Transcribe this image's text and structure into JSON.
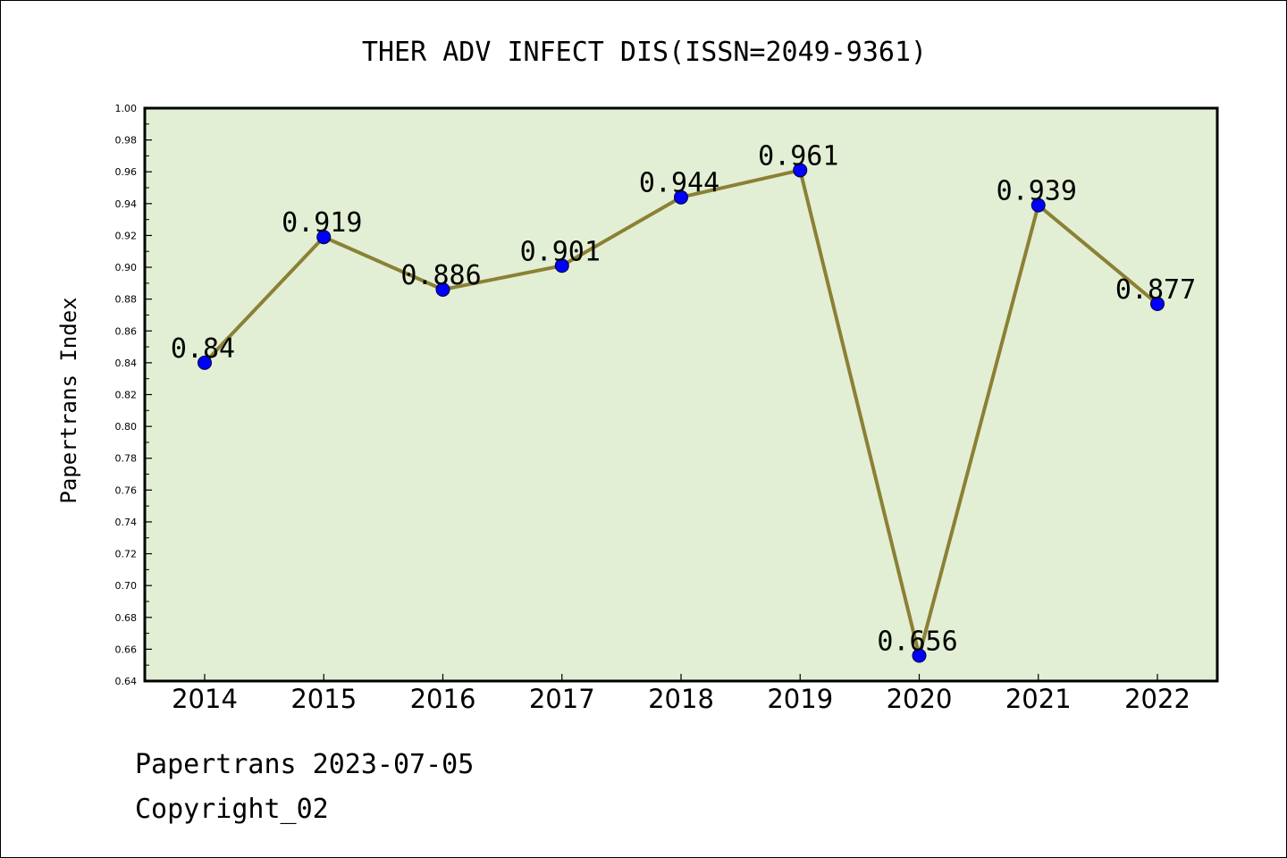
{
  "chart_data": {
    "type": "line",
    "title": "THER ADV INFECT DIS(ISSN=2049-9361)",
    "ylabel": "Papertrans Index",
    "xlabel": "",
    "categories": [
      "2014",
      "2015",
      "2016",
      "2017",
      "2018",
      "2019",
      "2020",
      "2021",
      "2022"
    ],
    "values": [
      0.84,
      0.919,
      0.886,
      0.901,
      0.944,
      0.961,
      0.656,
      0.939,
      0.877
    ],
    "data_labels": [
      "0.84",
      "0.919",
      "0.886",
      "0.901",
      "0.944",
      "0.961",
      "0.656",
      "0.939",
      "0.877"
    ],
    "ylim": [
      0.64,
      1.0
    ],
    "y_ticks": [
      "0.64",
      "0.66",
      "0.68",
      "0.70",
      "0.72",
      "0.74",
      "0.76",
      "0.78",
      "0.80",
      "0.82",
      "0.84",
      "0.86",
      "0.88",
      "0.90",
      "0.92",
      "0.94",
      "0.96",
      "0.98",
      "1.00"
    ],
    "grid": false,
    "legend": "none",
    "colors": {
      "plot_background": "#e2efd4",
      "line": "#8b8035",
      "marker": "#0000ff"
    }
  },
  "footer": {
    "line1": "Papertrans 2023-07-05",
    "line2": "Copyright_02"
  }
}
